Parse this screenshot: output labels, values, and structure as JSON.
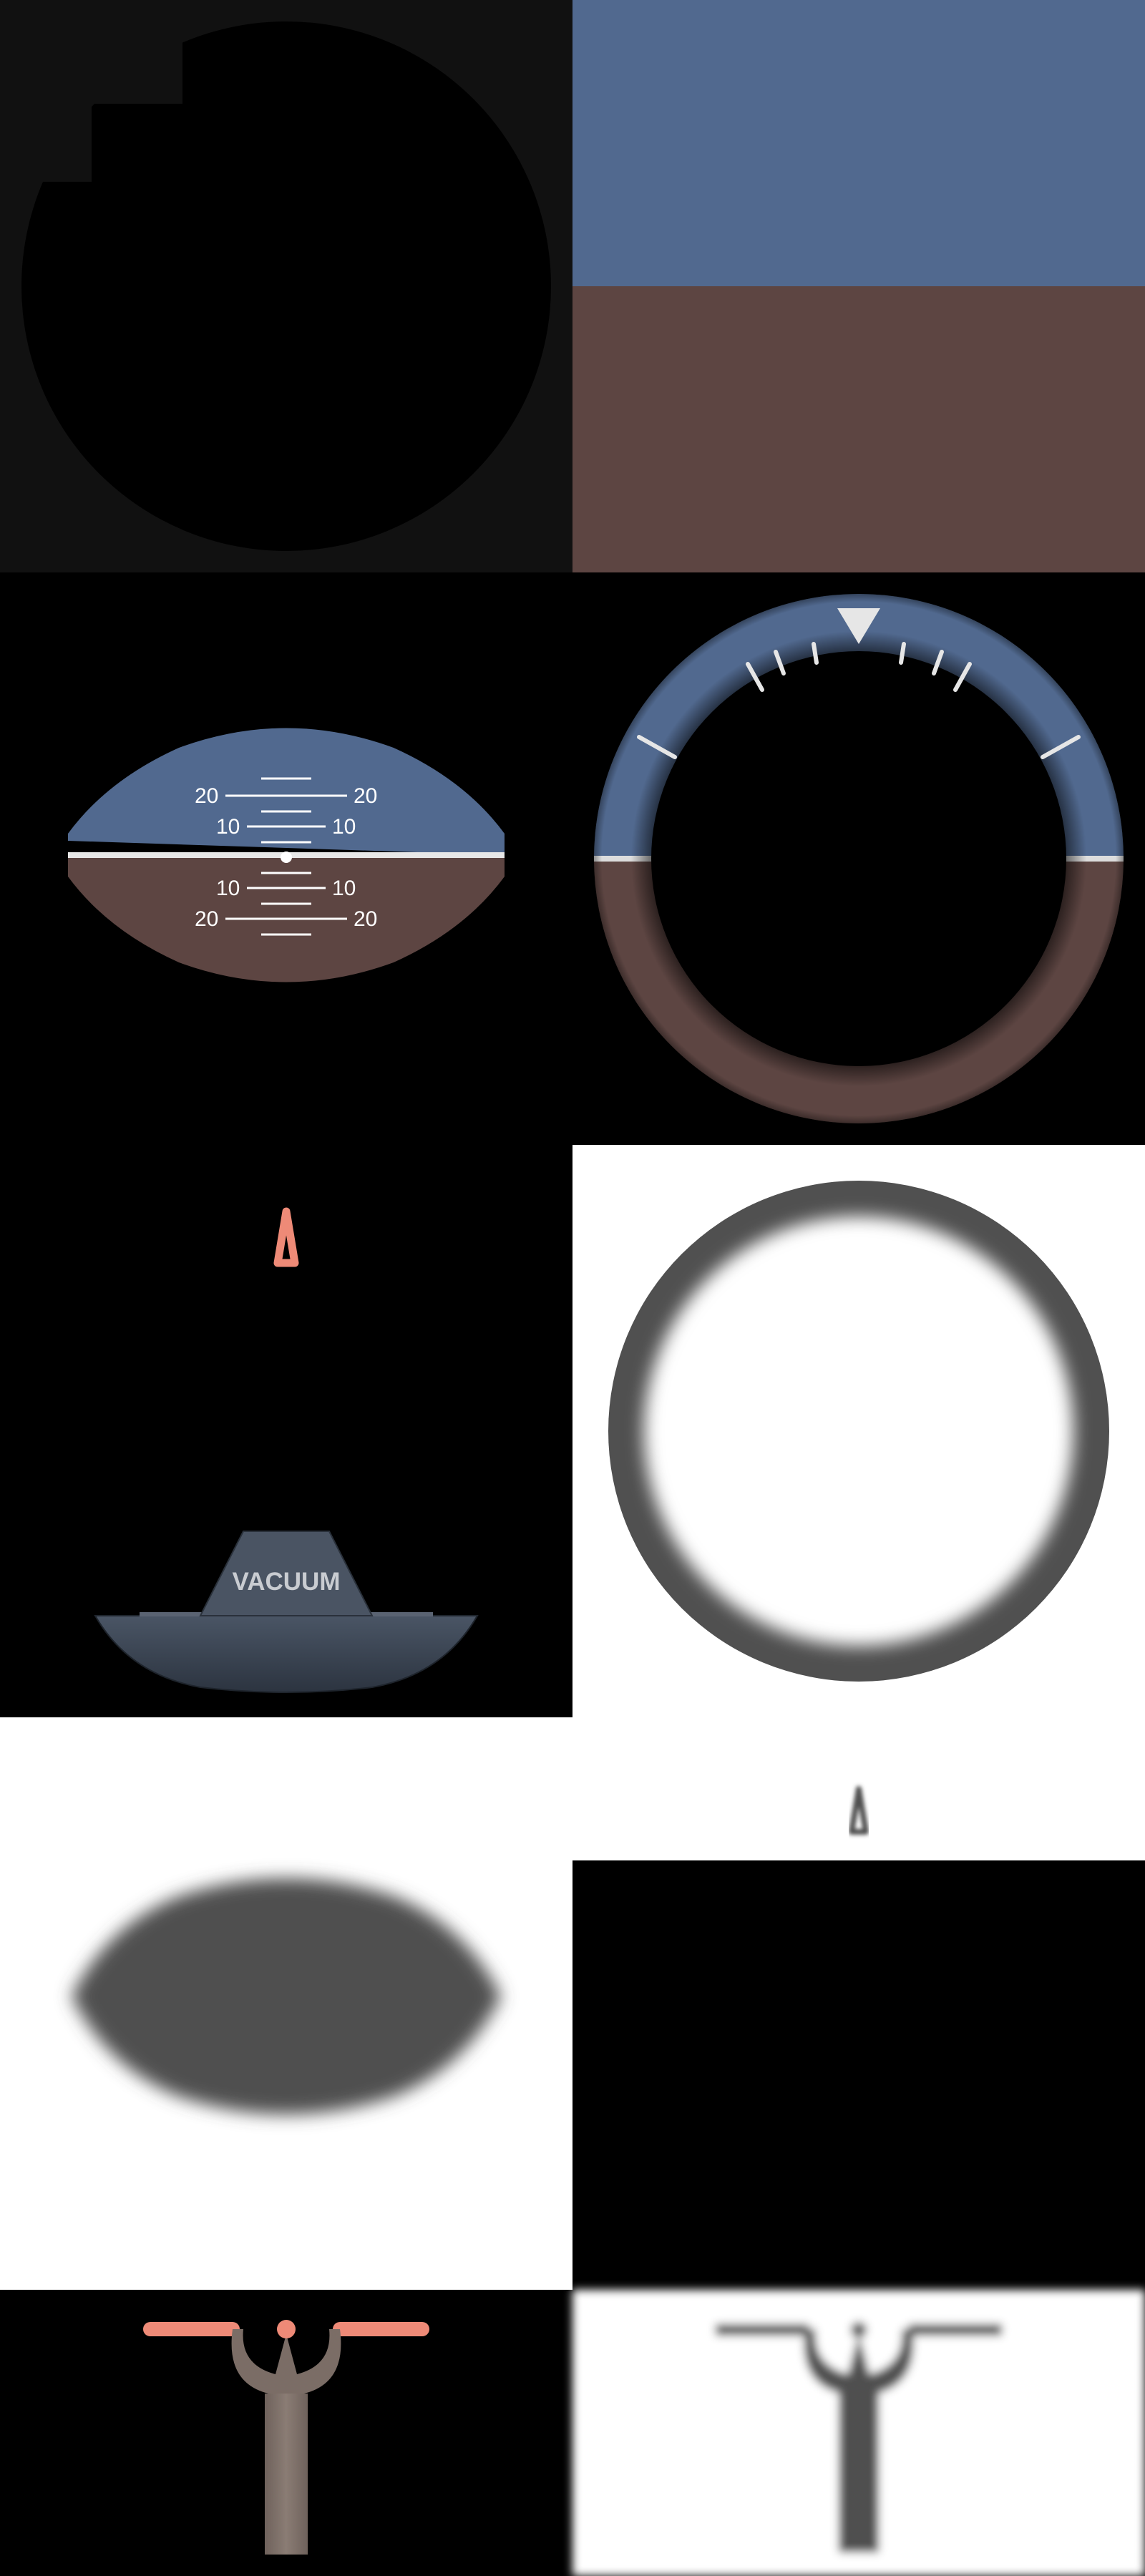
{
  "atlas": {
    "colors": {
      "sky": "#51698f",
      "ground": "#5d4542",
      "frame": "#111111",
      "white": "#ffffff",
      "shadow_gray": "#505050",
      "pointer_orange": "#ee8a77",
      "vacuum_plate": "#3b4452",
      "symbol_brown": "#7b6d66"
    },
    "tiles": [
      {
        "name": "bezel-mask",
        "type": "sprite"
      },
      {
        "name": "sky-ground-background",
        "type": "sprite"
      },
      {
        "name": "pitch-ladder",
        "type": "sprite"
      },
      {
        "name": "roll-scale-ring",
        "type": "sprite"
      },
      {
        "name": "roll-pointer-and-vacuum-plate",
        "type": "sprite"
      },
      {
        "name": "ring-shadow",
        "type": "sprite"
      },
      {
        "name": "pitch-shadow-and-pointer-shadow",
        "type": "sprite"
      },
      {
        "name": "blank-black",
        "type": "sprite"
      },
      {
        "name": "aircraft-symbol",
        "type": "sprite"
      },
      {
        "name": "aircraft-symbol-shadow",
        "type": "sprite"
      }
    ]
  },
  "pitch_ladder": {
    "upper_labels": [
      "20",
      "10"
    ],
    "lower_labels": [
      "10",
      "20"
    ]
  },
  "vacuum_plate": {
    "label": "VACUUM"
  }
}
